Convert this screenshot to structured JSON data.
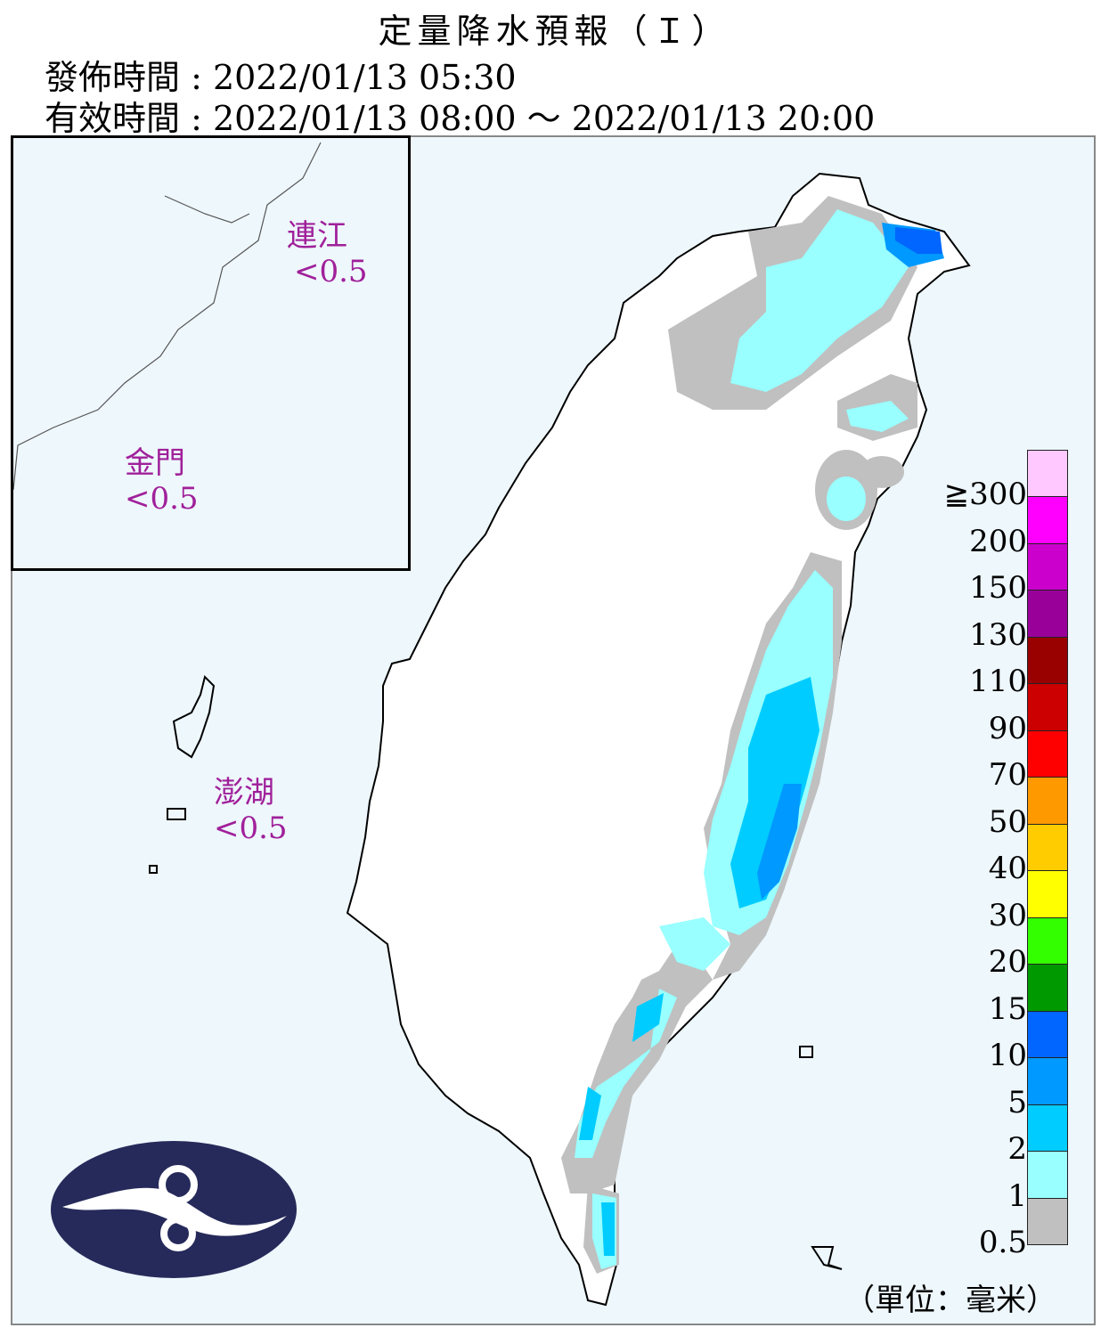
{
  "header": {
    "title": "定量降水預報（Ｉ）",
    "issue_time": "發佈時間 : 2022/01/13 05:30",
    "valid_time": "有效時間 : 2022/01/13 08:00 ～ 2022/01/13 20:00"
  },
  "islands": [
    {
      "name": "連江",
      "value": "<0.5"
    },
    {
      "name": "金門",
      "value": "<0.5"
    },
    {
      "name": "澎湖",
      "value": "<0.5"
    }
  ],
  "legend": {
    "unit": "（單位：毫米）",
    "ticks": [
      "≧300",
      "200",
      "150",
      "130",
      "110",
      "90",
      "70",
      "50",
      "40",
      "30",
      "20",
      "15",
      "10",
      "5",
      "2",
      "1",
      "0.5"
    ],
    "colors": [
      "#ffc8ff",
      "#ff00ff",
      "#cc00cc",
      "#990099",
      "#990000",
      "#cc0000",
      "#ff0000",
      "#ff9900",
      "#ffcc00",
      "#ffff00",
      "#33ff00",
      "#009900",
      "#0066ff",
      "#0099ff",
      "#00ccff",
      "#99ffff",
      "#c0c0c0"
    ]
  },
  "colors": {
    "background": "#eef7fc",
    "island_label": "#a0209a",
    "logo": "#262a5a"
  }
}
